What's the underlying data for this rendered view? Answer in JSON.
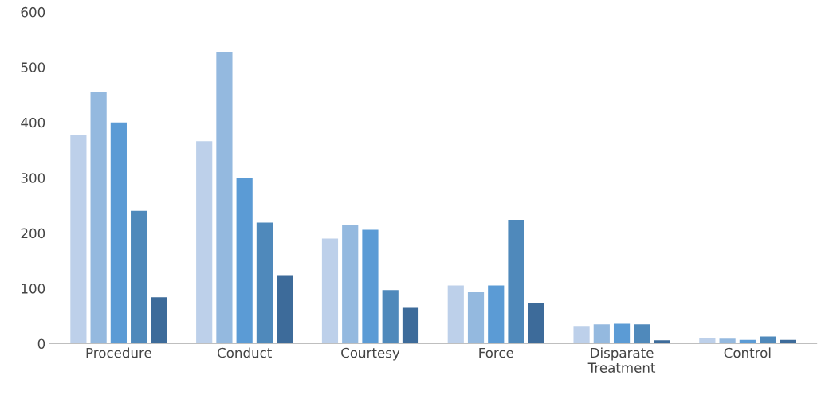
{
  "chart_data": {
    "type": "bar",
    "categories": [
      "Procedure",
      "Conduct",
      "Courtesy",
      "Force",
      "Disparate\nTreatment",
      "Control"
    ],
    "series": [
      {
        "color": "#bdd0ea",
        "values": [
          378,
          366,
          190,
          105,
          32,
          10
        ]
      },
      {
        "color": "#94b9df",
        "values": [
          455,
          528,
          214,
          93,
          35,
          9
        ]
      },
      {
        "color": "#5b9bd5",
        "values": [
          400,
          299,
          206,
          105,
          36,
          7
        ]
      },
      {
        "color": "#4f89bb",
        "values": [
          240,
          219,
          97,
          224,
          35,
          13
        ]
      },
      {
        "color": "#3d6b9a",
        "values": [
          84,
          124,
          65,
          74,
          6,
          7
        ]
      }
    ],
    "ylim": [
      0,
      600
    ],
    "yticks": [
      0,
      100,
      200,
      300,
      400,
      500,
      600
    ],
    "grid": false,
    "legend": false
  }
}
